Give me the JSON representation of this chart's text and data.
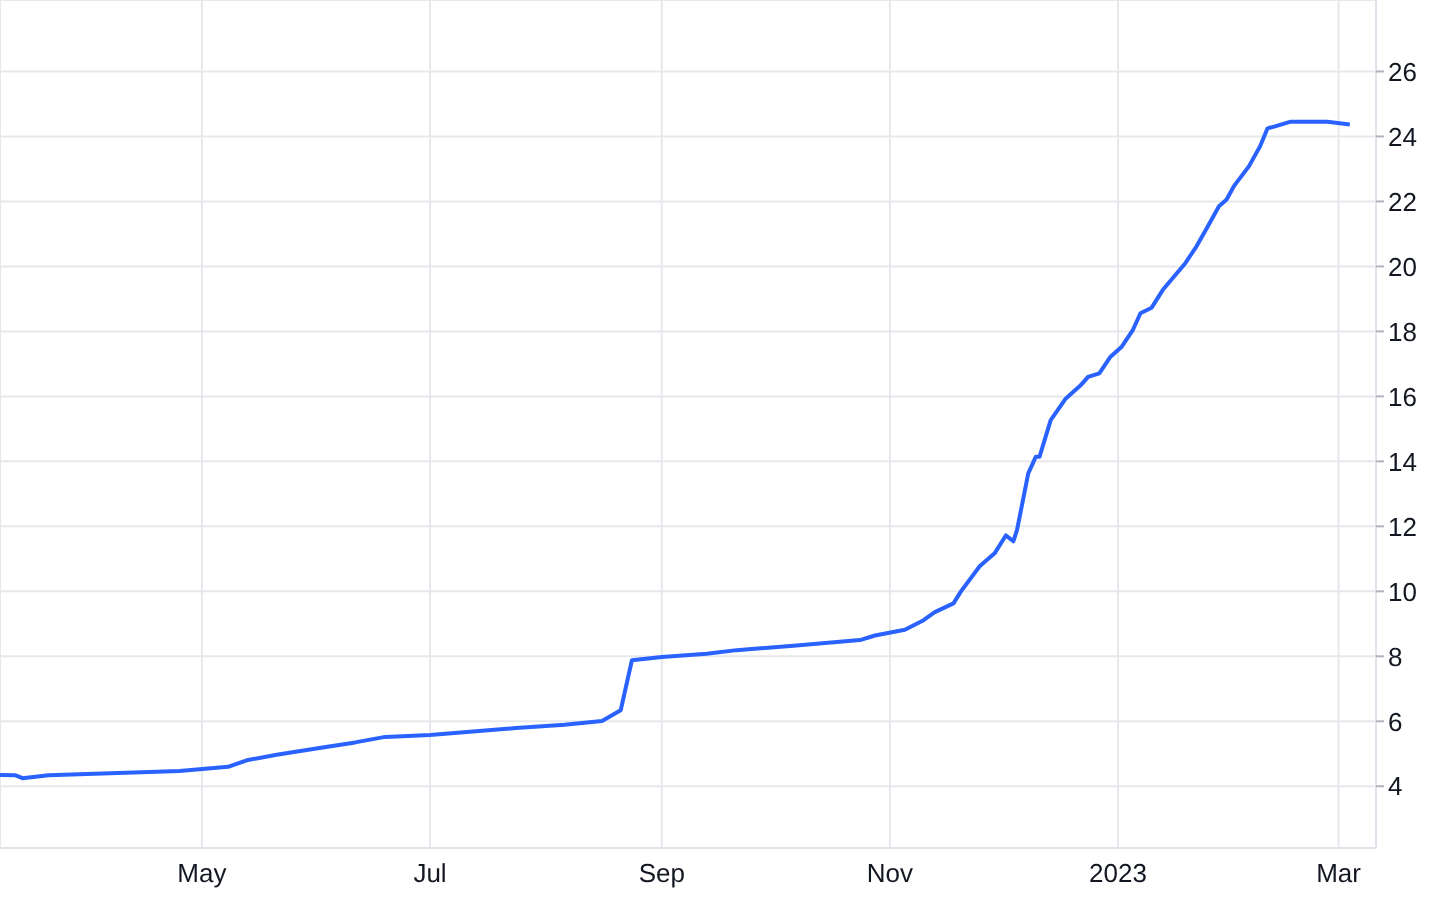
{
  "chart_data": {
    "type": "line",
    "x": [
      "2022-03-08",
      "2022-03-12",
      "2022-03-14",
      "2022-03-21",
      "2022-04-25",
      "2022-05-08",
      "2022-05-13",
      "2022-05-21",
      "2022-06-01",
      "2022-06-11",
      "2022-06-19",
      "2022-07-01",
      "2022-07-10",
      "2022-07-24",
      "2022-08-06",
      "2022-08-16",
      "2022-08-21",
      "2022-08-24",
      "2022-09-01",
      "2022-09-13",
      "2022-09-21",
      "2022-10-07",
      "2022-10-24",
      "2022-10-28",
      "2022-11-05",
      "2022-11-10",
      "2022-11-13",
      "2022-11-18",
      "2022-11-20",
      "2022-11-25",
      "2022-11-29",
      "2022-12-02",
      "2022-12-04",
      "2022-12-05",
      "2022-12-08",
      "2022-12-10",
      "2022-12-11",
      "2022-12-14",
      "2022-12-18",
      "2022-12-22",
      "2022-12-24",
      "2022-12-27",
      "2022-12-30",
      "2023-01-02",
      "2023-01-05",
      "2023-01-07",
      "2023-01-10",
      "2023-01-13",
      "2023-01-16",
      "2023-01-19",
      "2023-01-22",
      "2023-01-25",
      "2023-01-28",
      "2023-01-30",
      "2023-02-01",
      "2023-02-05",
      "2023-02-08",
      "2023-02-10",
      "2023-02-12",
      "2023-02-16",
      "2023-02-21",
      "2023-02-26",
      "2023-03-04"
    ],
    "series": [
      {
        "color": "#2962ff",
        "values": [
          4.35,
          4.34,
          4.25,
          4.34,
          4.47,
          4.6,
          4.8,
          4.97,
          5.17,
          5.35,
          5.52,
          5.58,
          5.66,
          5.79,
          5.89,
          6.01,
          6.34,
          7.88,
          7.98,
          8.08,
          8.19,
          8.33,
          8.5,
          8.64,
          8.82,
          9.11,
          9.36,
          9.63,
          10.0,
          10.77,
          11.17,
          11.72,
          11.54,
          11.89,
          13.63,
          14.14,
          14.14,
          15.27,
          15.93,
          16.34,
          16.6,
          16.71,
          17.22,
          17.53,
          18.05,
          18.56,
          18.73,
          19.28,
          19.69,
          20.1,
          20.62,
          21.23,
          21.85,
          22.05,
          22.47,
          23.08,
          23.7,
          24.25,
          24.31,
          24.45,
          24.45,
          24.45,
          24.37
        ]
      }
    ],
    "xlim": [
      "2022-03-08",
      "2023-03-11"
    ],
    "xticks": [
      {
        "value": "2022-05-01",
        "label": "May"
      },
      {
        "value": "2022-07-01",
        "label": "Jul"
      },
      {
        "value": "2022-09-01",
        "label": "Sep"
      },
      {
        "value": "2022-11-01",
        "label": "Nov"
      },
      {
        "value": "2023-01-01",
        "label": "2023"
      },
      {
        "value": "2023-03-01",
        "label": "Mar"
      }
    ],
    "ylim": [
      2.1,
      28.2
    ],
    "yticks": [
      4,
      6,
      8,
      10,
      12,
      14,
      16,
      18,
      20,
      22,
      24,
      26
    ],
    "grid": true,
    "marker": "none",
    "line_style": "solid",
    "legend": false
  }
}
